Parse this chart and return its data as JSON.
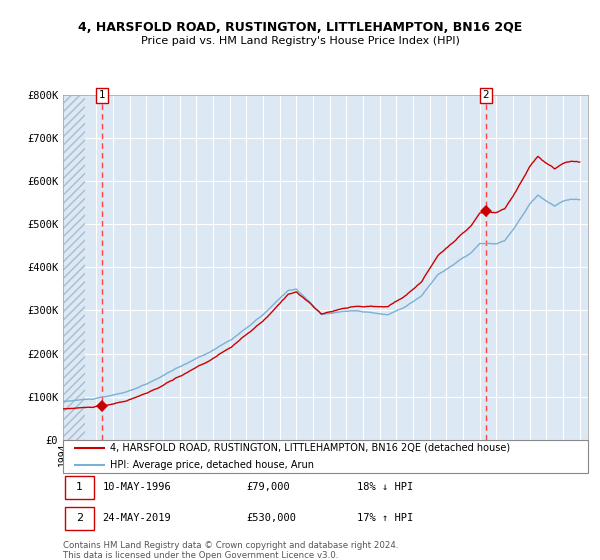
{
  "title1": "4, HARSFOLD ROAD, RUSTINGTON, LITTLEHAMPTON, BN16 2QE",
  "title2": "Price paid vs. HM Land Registry's House Price Index (HPI)",
  "ylim": [
    0,
    800000
  ],
  "yticks": [
    0,
    100000,
    200000,
    300000,
    400000,
    500000,
    600000,
    700000,
    800000
  ],
  "ytick_labels": [
    "£0",
    "£100K",
    "£200K",
    "£300K",
    "£400K",
    "£500K",
    "£600K",
    "£700K",
    "£800K"
  ],
  "xlim_start": 1994.0,
  "xlim_end": 2025.5,
  "hatch_end": 1995.3,
  "sale1_date": 1996.36,
  "sale1_price": 79000,
  "sale2_date": 2019.38,
  "sale2_price": 530000,
  "line_color_red": "#cc0000",
  "line_color_blue": "#7ab0d4",
  "marker_color": "#cc0000",
  "dashed_color": "#ff4444",
  "plot_bg": "#dce9f5",
  "grid_color": "#ffffff",
  "legend1": "4, HARSFOLD ROAD, RUSTINGTON, LITTLEHAMPTON, BN16 2QE (detached house)",
  "legend2": "HPI: Average price, detached house, Arun",
  "footnote": "Contains HM Land Registry data © Crown copyright and database right 2024.\nThis data is licensed under the Open Government Licence v3.0."
}
